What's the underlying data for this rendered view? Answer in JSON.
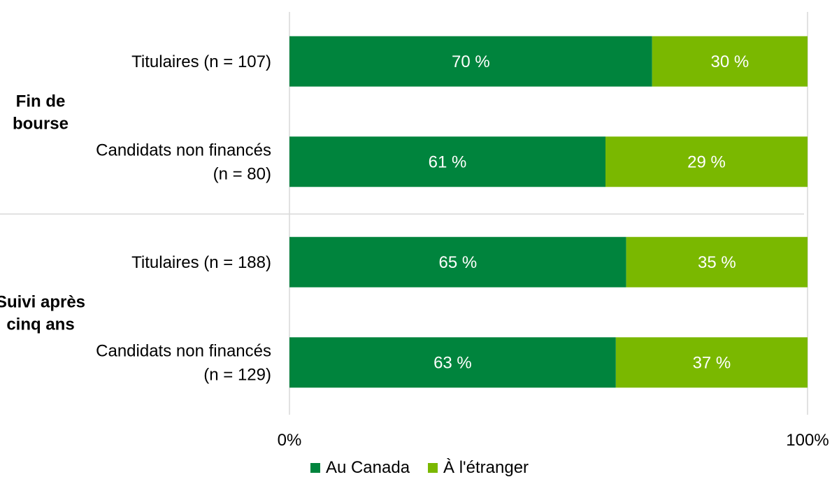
{
  "chart_data": {
    "type": "bar",
    "orientation": "horizontal",
    "stacked": true,
    "groups": [
      {
        "label_lines": [
          "Fin de",
          "bourse"
        ],
        "category_indices": [
          0,
          1
        ]
      },
      {
        "label_lines": [
          "Suivi après",
          "cinq ans"
        ],
        "category_indices": [
          2,
          3
        ]
      }
    ],
    "categories": [
      {
        "lines": [
          "Titulaires (n = 107)"
        ]
      },
      {
        "lines": [
          "Candidats non financés",
          "(n = 80)"
        ]
      },
      {
        "lines": [
          "Titulaires (n = 188)"
        ]
      },
      {
        "lines": [
          "Candidats non financés",
          "(n = 129)"
        ]
      }
    ],
    "series": [
      {
        "name": "Au Canada",
        "color": "#00843d",
        "values": [
          70,
          61,
          65,
          63
        ],
        "labels": [
          "70 %",
          "61 %",
          "65 %",
          "63 %"
        ]
      },
      {
        "name": "À l'étranger",
        "color": "#7ab800",
        "values": [
          30,
          29,
          35,
          37
        ],
        "labels": [
          "30 %",
          "29 %",
          "35 %",
          "37 %"
        ]
      }
    ],
    "xlim": [
      0,
      100
    ],
    "x_ticks": [
      "0%",
      "100%"
    ],
    "grid": "vertical lines at 0% and 100%",
    "legend_position": "bottom"
  }
}
